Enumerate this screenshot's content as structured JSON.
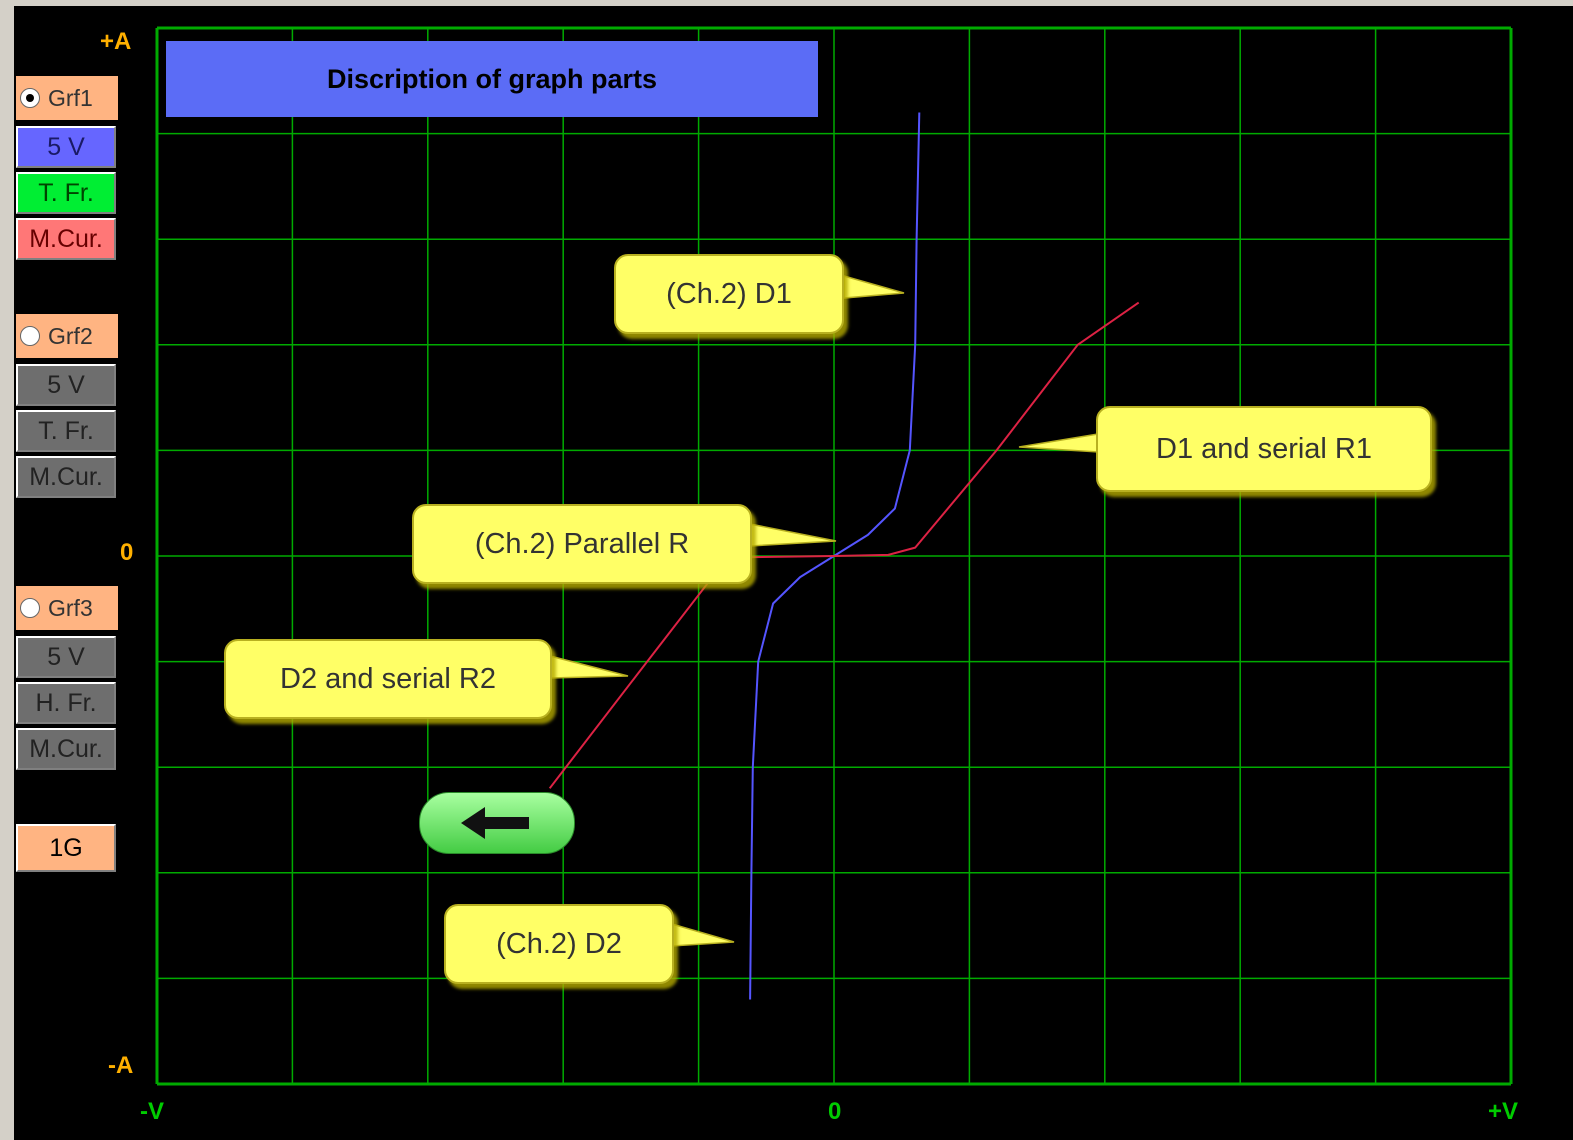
{
  "chart_data": {
    "type": "line",
    "y_axis": {
      "top_label": "+A",
      "zero_label": "0",
      "bottom_label": "-A"
    },
    "x_axis": {
      "left_label": "-V",
      "zero_label": "0",
      "right_label": "+V"
    },
    "grid": true,
    "grid_divisions": {
      "x": 10,
      "y": 10
    },
    "xlim": [
      -5,
      5
    ],
    "ylim": [
      -5,
      5
    ],
    "series": [
      {
        "color": "#5555ff",
        "points": [
          [
            -0.62,
            -4.2
          ],
          [
            -0.61,
            -3.0
          ],
          [
            -0.6,
            -2.0
          ],
          [
            -0.56,
            -1.0
          ],
          [
            -0.45,
            -0.45
          ],
          [
            -0.25,
            -0.2
          ],
          [
            0,
            0
          ],
          [
            0.25,
            0.2
          ],
          [
            0.45,
            0.45
          ],
          [
            0.56,
            1.0
          ],
          [
            0.6,
            2.0
          ],
          [
            0.61,
            3.0
          ],
          [
            0.63,
            4.2
          ]
        ]
      },
      {
        "color": "#dd2244",
        "points": [
          [
            -2.1,
            -2.2
          ],
          [
            -1.5,
            -1.2
          ],
          [
            -0.85,
            -0.12
          ],
          [
            -0.6,
            -0.01
          ],
          [
            0,
            0
          ],
          [
            0.4,
            0.01
          ],
          [
            0.6,
            0.08
          ],
          [
            1.2,
            1.0
          ],
          [
            1.8,
            2.0
          ],
          [
            2.25,
            2.4
          ]
        ]
      }
    ]
  },
  "title_box": {
    "text": "Discription of graph parts"
  },
  "callouts": [
    {
      "text": "(Ch.2)  D1"
    },
    {
      "text": "D1 and serial R1"
    },
    {
      "text": "(Ch.2) Parallel R"
    },
    {
      "text": "D2 and serial R2"
    },
    {
      "text": "(Ch.2)  D2"
    }
  ],
  "sidebar": {
    "groups": [
      {
        "radio_label": "Grf1",
        "selected": true,
        "buttons": [
          "5 V",
          "T. Fr.",
          "M.Cur."
        ],
        "button_colors": [
          "#6666ff",
          "#00ee33",
          "#ff7777"
        ]
      },
      {
        "radio_label": "Grf2",
        "selected": false,
        "buttons": [
          "5 V",
          "T. Fr.",
          "M.Cur."
        ],
        "button_colors": [
          "#6e6e6e",
          "#6e6e6e",
          "#6e6e6e"
        ]
      },
      {
        "radio_label": "Grf3",
        "selected": false,
        "buttons": [
          "5 V",
          "H. Fr.",
          "M.Cur."
        ],
        "button_colors": [
          "#6e6e6e",
          "#6e6e6e",
          "#6e6e6e"
        ]
      }
    ],
    "scale_button": "1G"
  },
  "back_button": {
    "icon": "left-arrow-icon"
  },
  "colors": {
    "grid": "#00aa00",
    "background": "#000000",
    "axis_label": "#ffb000",
    "callout": "#ffff66",
    "title_box": "#5b6cf6"
  }
}
